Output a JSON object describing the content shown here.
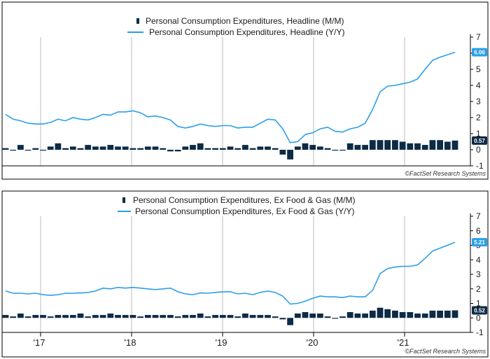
{
  "colors": {
    "bar": "#0d2b45",
    "line": "#2a9fe8",
    "grid": "#bdbdbd",
    "frame": "#000000",
    "label_bar_bg": "#0d2b45",
    "label_line_bg": "#2a9fe8"
  },
  "copyright": "©FactSet Research Systems",
  "chart_data": [
    {
      "type": "bar+line",
      "legend": {
        "bar": "Personal Consumption Expenditures, Headline (M/M)",
        "line": "Personal Consumption Expenditures, Headline (Y/Y)"
      },
      "ylim": [
        -1,
        7
      ],
      "yticks": [
        "-1",
        "0",
        "1",
        "2",
        "3",
        "4",
        "5",
        "6",
        "7"
      ],
      "end_labels": {
        "line": "6.06",
        "bar": "0.57"
      },
      "bars": [
        0.1,
        0.0,
        0.3,
        0.0,
        0.1,
        0.0,
        0.2,
        0.4,
        0.1,
        0.2,
        0.1,
        0.3,
        0.2,
        0.2,
        0.3,
        0.2,
        0.2,
        0.1,
        0.1,
        0.2,
        0.2,
        0.1,
        -0.1,
        -0.1,
        0.2,
        0.3,
        0.4,
        0.1,
        0.1,
        0.1,
        0.2,
        0.1,
        0.3,
        0.1,
        0.2,
        0.2,
        0.1,
        -0.3,
        -0.6,
        0.2,
        0.4,
        0.3,
        0.2,
        0.1,
        0.0,
        0.0,
        0.4,
        0.3,
        0.3,
        0.6,
        0.6,
        0.6,
        0.6,
        0.5,
        0.4,
        0.4,
        0.3,
        0.6,
        0.6,
        0.5,
        0.57
      ],
      "line": [
        2.2,
        1.9,
        1.8,
        1.65,
        1.6,
        1.6,
        1.7,
        1.9,
        1.8,
        2.0,
        1.9,
        1.85,
        2.0,
        2.2,
        2.15,
        2.35,
        2.35,
        2.42,
        2.3,
        2.05,
        2.1,
        2.0,
        1.85,
        1.45,
        1.35,
        1.45,
        1.6,
        1.5,
        1.45,
        1.5,
        1.5,
        1.35,
        1.4,
        1.4,
        1.65,
        1.9,
        1.85,
        1.3,
        0.45,
        0.5,
        0.95,
        1.05,
        1.3,
        1.4,
        1.15,
        1.1,
        1.3,
        1.4,
        1.65,
        2.5,
        3.6,
        3.95,
        4.0,
        4.1,
        4.2,
        4.4,
        5.0,
        5.55,
        5.75,
        5.9,
        6.06
      ]
    },
    {
      "type": "bar+line",
      "legend": {
        "bar": "Personal Consumption Expenditures, Ex Food & Gas (M/M)",
        "line": "Personal Consumption Expenditures, Ex Food & Gas (Y/Y)"
      },
      "ylim": [
        -1,
        7
      ],
      "yticks": [
        "-1",
        "0",
        "1",
        "2",
        "3",
        "4",
        "5",
        "6",
        "7"
      ],
      "end_labels": {
        "line": "5.21",
        "bar": "0.52"
      },
      "bars": [
        0.2,
        0.1,
        0.3,
        0.1,
        0.2,
        0.2,
        0.1,
        0.2,
        0.2,
        0.2,
        0.3,
        0.1,
        0.2,
        0.2,
        0.3,
        0.2,
        0.2,
        0.2,
        0.1,
        0.2,
        0.2,
        0.2,
        0.2,
        0.1,
        0.2,
        0.2,
        0.3,
        0.1,
        0.2,
        0.2,
        0.2,
        0.1,
        0.3,
        0.2,
        0.2,
        0.2,
        0.1,
        -0.1,
        -0.5,
        0.3,
        0.4,
        0.3,
        0.3,
        0.1,
        0.0,
        0.1,
        0.4,
        0.3,
        0.3,
        0.5,
        0.7,
        0.6,
        0.5,
        0.4,
        0.4,
        0.3,
        0.3,
        0.5,
        0.5,
        0.5,
        0.52
      ],
      "line": [
        1.85,
        1.7,
        1.7,
        1.65,
        1.7,
        1.6,
        1.55,
        1.6,
        1.7,
        1.7,
        1.72,
        1.75,
        1.85,
        2.05,
        2.0,
        2.1,
        2.05,
        2.1,
        2.05,
        2.0,
        1.95,
        2.0,
        2.05,
        1.8,
        1.65,
        1.6,
        1.72,
        1.7,
        1.75,
        1.8,
        1.8,
        1.65,
        1.7,
        1.6,
        1.75,
        1.85,
        1.75,
        1.5,
        0.95,
        1.0,
        1.15,
        1.35,
        1.5,
        1.45,
        1.45,
        1.4,
        1.5,
        1.45,
        1.45,
        1.9,
        3.05,
        3.4,
        3.5,
        3.55,
        3.55,
        3.65,
        4.1,
        4.6,
        4.8,
        5.0,
        5.21
      ]
    }
  ],
  "xaxis": {
    "ticks": [
      "'17",
      "'18",
      "'19",
      "'20",
      "'21"
    ]
  }
}
